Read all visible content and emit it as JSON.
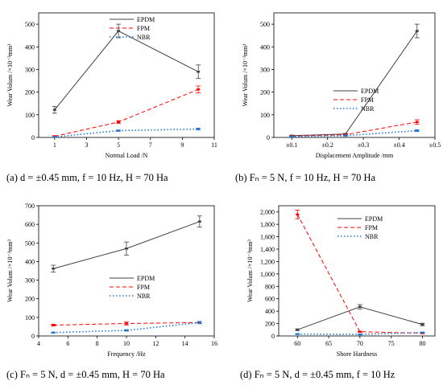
{
  "chart_data": [
    {
      "type": "line",
      "caption": "(a) d = ±0.45 mm, f = 10 Hz, H = 70 Ha",
      "xlabel": "Normal Load /N",
      "ylabel": "Wear Volum /×10⁻³mm³",
      "x": [
        1,
        5,
        10
      ],
      "xlim": [
        0,
        11
      ],
      "xticks": [
        1,
        3,
        5,
        7,
        9,
        11
      ],
      "xtick_labels": [
        "1",
        "3",
        "5",
        "7",
        "9",
        "11"
      ],
      "ylim": [
        0,
        550
      ],
      "yticks": [
        0,
        100,
        200,
        300,
        400,
        500
      ],
      "ytick_labels": [
        "0",
        "100",
        "200",
        "300",
        "400",
        "500"
      ],
      "legend_position": "top-right",
      "series": [
        {
          "name": "EPDM",
          "values": [
            122,
            470,
            290
          ],
          "errors": [
            15,
            30,
            30
          ],
          "color": "#404040",
          "dash": "solid"
        },
        {
          "name": "FPM",
          "values": [
            5,
            68,
            212
          ],
          "errors": [
            3,
            6,
            15
          ],
          "color": "#ff0000",
          "dash": "dashed"
        },
        {
          "name": "NBR",
          "values": [
            2,
            30,
            37
          ],
          "errors": [
            2,
            3,
            4
          ],
          "color": "#1f77d4",
          "dash": "dotted"
        }
      ]
    },
    {
      "type": "line",
      "caption": "(b) Fₙ = 5 N, f = 10 Hz, H = 70 Ha",
      "xlabel": "Displacement Amplitude /mm",
      "ylabel": "Wear Volum /×10⁻³mm³",
      "x": [
        0.1,
        0.25,
        0.45
      ],
      "xlim": [
        0.05,
        0.5
      ],
      "xticks": [
        0.1,
        0.2,
        0.3,
        0.4,
        0.5
      ],
      "xtick_labels": [
        "±0.1",
        "±0.2",
        "±0.3",
        "±0.4",
        "±0.5"
      ],
      "ylim": [
        0,
        550
      ],
      "yticks": [
        0,
        100,
        200,
        300,
        400,
        500
      ],
      "ytick_labels": [
        "0",
        "100",
        "200",
        "300",
        "400",
        "500"
      ],
      "legend_position": "right",
      "series": [
        {
          "name": "EPDM",
          "values": [
            8,
            15,
            470
          ],
          "errors": [
            2,
            3,
            30
          ],
          "color": "#404040",
          "dash": "solid"
        },
        {
          "name": "FPM",
          "values": [
            6,
            12,
            68
          ],
          "errors": [
            2,
            3,
            10
          ],
          "color": "#ff0000",
          "dash": "dashed"
        },
        {
          "name": "NBR",
          "values": [
            4,
            8,
            30
          ],
          "errors": [
            1,
            2,
            4
          ],
          "color": "#1f77d4",
          "dash": "dotted"
        }
      ]
    },
    {
      "type": "line",
      "caption": "(c) Fₙ = 5 N, d = ±0.45 mm, H = 70 Ha",
      "xlabel": "Frequency /Hz",
      "ylabel": "Wear Volum /×10⁻³mm³",
      "x": [
        5,
        10,
        15
      ],
      "xlim": [
        4,
        16
      ],
      "xticks": [
        4,
        6,
        8,
        10,
        12,
        14,
        16
      ],
      "xtick_labels": [
        "4",
        "6",
        "8",
        "10",
        "12",
        "14",
        "16"
      ],
      "ylim": [
        0,
        700
      ],
      "yticks": [
        0,
        100,
        200,
        300,
        400,
        500,
        600,
        700
      ],
      "ytick_labels": [
        "0",
        "100",
        "200",
        "300",
        "400",
        "500",
        "600",
        "700"
      ],
      "legend_position": "right",
      "series": [
        {
          "name": "EPDM",
          "values": [
            362,
            470,
            615
          ],
          "errors": [
            18,
            35,
            30
          ],
          "color": "#404040",
          "dash": "solid"
        },
        {
          "name": "FPM",
          "values": [
            58,
            67,
            72
          ],
          "errors": [
            5,
            8,
            6
          ],
          "color": "#ff0000",
          "dash": "dashed"
        },
        {
          "name": "NBR",
          "values": [
            18,
            30,
            72
          ],
          "errors": [
            3,
            4,
            6
          ],
          "color": "#1f77d4",
          "dash": "dotted"
        }
      ]
    },
    {
      "type": "line",
      "caption": "(d) Fₙ = 5 N, d = ±0.45 mm, f = 10 Hz",
      "xlabel": "Shore Hardness",
      "ylabel": "Wear Volum /×10⁻³mm³",
      "x": [
        60,
        70,
        80
      ],
      "xlim": [
        57,
        82
      ],
      "xticks": [
        60,
        65,
        70,
        75,
        80
      ],
      "xtick_labels": [
        "60",
        "65",
        "70",
        "75",
        "80"
      ],
      "ylim": [
        0,
        2100
      ],
      "yticks": [
        0,
        200,
        400,
        600,
        800,
        1000,
        1200,
        1400,
        1600,
        1800,
        2000
      ],
      "ytick_labels": [
        "0",
        "200",
        "400",
        "600",
        "800",
        "1,000",
        "1,200",
        "1,400",
        "1,600",
        "1,800",
        "2,000"
      ],
      "legend_position": "top-right",
      "series": [
        {
          "name": "EPDM",
          "values": [
            100,
            470,
            185
          ],
          "errors": [
            15,
            35,
            20
          ],
          "color": "#404040",
          "dash": "solid"
        },
        {
          "name": "FPM",
          "values": [
            1960,
            68,
            45
          ],
          "errors": [
            70,
            10,
            8
          ],
          "color": "#ff0000",
          "dash": "dashed"
        },
        {
          "name": "NBR",
          "values": [
            30,
            25,
            55
          ],
          "errors": [
            4,
            4,
            6
          ],
          "color": "#1f77d4",
          "dash": "dotted"
        }
      ]
    }
  ]
}
